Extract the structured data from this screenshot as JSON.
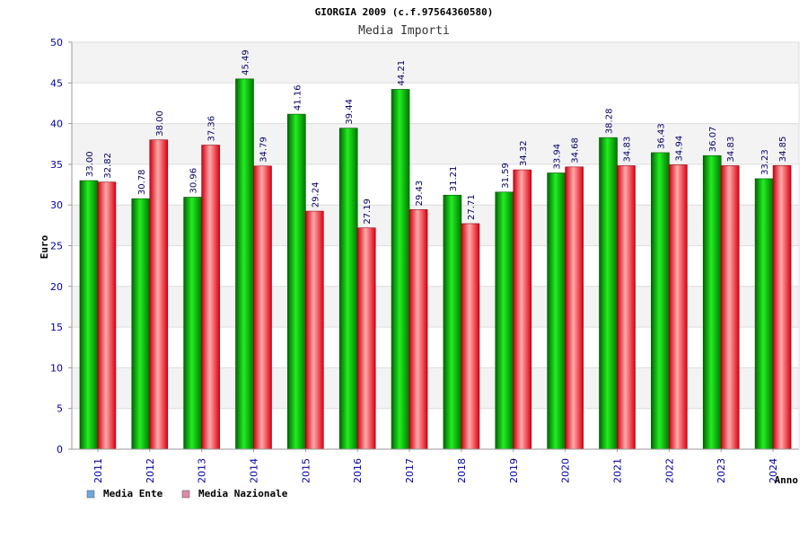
{
  "chart_data": {
    "type": "bar",
    "title": "GIORGIA 2009 (c.f.97564360580)",
    "subtitle": "Media Importi",
    "xlabel": "Anno",
    "ylabel": "Euro",
    "ylim": [
      0,
      50
    ],
    "yticks": [
      "0",
      "5",
      "10",
      "15",
      "20",
      "25",
      "30",
      "35",
      "40",
      "45",
      "50"
    ],
    "grid": true,
    "legend_position": "bottom-left",
    "categories": [
      "2011",
      "2012",
      "2013",
      "2014",
      "2015",
      "2016",
      "2017",
      "2018",
      "2019",
      "2020",
      "2021",
      "2022",
      "2023",
      "2024"
    ],
    "series": [
      {
        "name": "Media Ente",
        "legend_color": "#6fa8dc",
        "bar_color": "#00aa00",
        "values": [
          33.0,
          30.78,
          30.96,
          45.49,
          41.16,
          39.44,
          44.21,
          31.21,
          31.59,
          33.94,
          38.28,
          36.43,
          36.07,
          33.23
        ],
        "labels": [
          "33.00",
          "30.78",
          "30.96",
          "45.49",
          "41.16",
          "39.44",
          "44.21",
          "31.21",
          "31.59",
          "33.94",
          "38.28",
          "36.43",
          "36.07",
          "33.23"
        ]
      },
      {
        "name": "Media Nazionale",
        "legend_color": "#dd88aa",
        "bar_color": "#ee2233",
        "values": [
          32.82,
          38.0,
          37.36,
          34.79,
          29.24,
          27.19,
          29.43,
          27.71,
          34.32,
          34.68,
          34.83,
          34.94,
          34.83,
          34.85
        ],
        "labels": [
          "32.82",
          "38.00",
          "37.36",
          "34.79",
          "29.24",
          "27.19",
          "29.43",
          "27.71",
          "34.32",
          "34.68",
          "34.83",
          "34.94",
          "34.83",
          "34.85"
        ]
      }
    ]
  }
}
